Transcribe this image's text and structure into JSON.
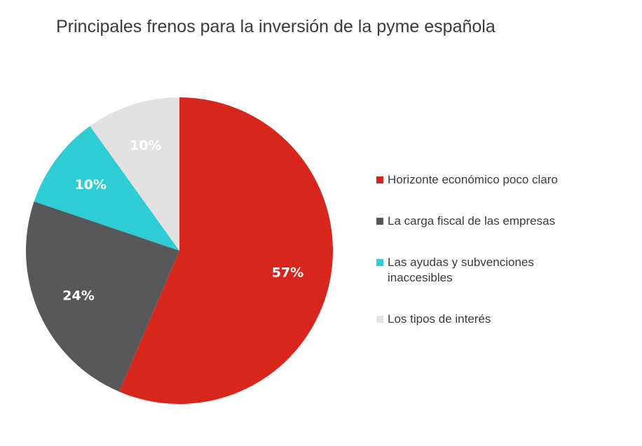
{
  "chart_data": {
    "type": "pie",
    "title": "Principales frenos para la inversión de la pyme española",
    "categories": [
      "Horizonte económico poco claro",
      "La carga fiscal de las empresas",
      "Las ayudas y subvenciones inaccesibles",
      "Los tipos de interés"
    ],
    "values": [
      57,
      24,
      10,
      10
    ],
    "value_labels": [
      "57%",
      "24%",
      "10%",
      "10%"
    ],
    "colors": [
      "#d9261c",
      "#58585a",
      "#2ecdd6",
      "#e2e2e2"
    ],
    "label_colors": [
      "#ffffff",
      "#ffffff",
      "#ffffff",
      "#ffffff"
    ],
    "legend_position": "right"
  }
}
